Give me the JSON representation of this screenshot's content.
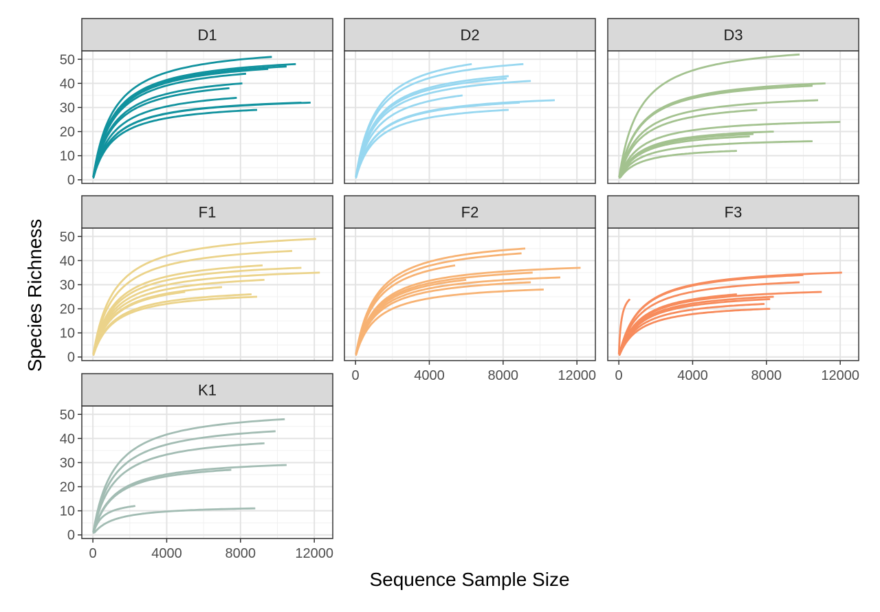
{
  "chart_data": {
    "type": "line",
    "layout": "facet_wrap",
    "xlabel": "Sequence Sample Size",
    "ylabel": "Species Richness",
    "xlim": [
      -600,
      13000
    ],
    "ylim": [
      -1.5,
      53.5
    ],
    "x_ticks": [
      0,
      4000,
      8000,
      12000
    ],
    "y_ticks": [
      0,
      10,
      20,
      30,
      40,
      50
    ],
    "grid": true,
    "panels": [
      {
        "name": "D1",
        "color": "#11929E",
        "curves": [
          {
            "max_x": 9700,
            "max_y": 51
          },
          {
            "max_x": 11000,
            "max_y": 48
          },
          {
            "max_x": 10500,
            "max_y": 47
          },
          {
            "max_x": 9500,
            "max_y": 46
          },
          {
            "max_x": 8300,
            "max_y": 44
          },
          {
            "max_x": 8100,
            "max_y": 40
          },
          {
            "max_x": 7400,
            "max_y": 38
          },
          {
            "max_x": 7800,
            "max_y": 34
          },
          {
            "max_x": 11800,
            "max_y": 32
          },
          {
            "max_x": 11300,
            "max_y": 32
          },
          {
            "max_x": 8900,
            "max_y": 29
          }
        ]
      },
      {
        "name": "D2",
        "color": "#97D7F0",
        "curves": [
          {
            "max_x": 6300,
            "max_y": 48
          },
          {
            "max_x": 9100,
            "max_y": 48
          },
          {
            "max_x": 8300,
            "max_y": 43
          },
          {
            "max_x": 8200,
            "max_y": 42
          },
          {
            "max_x": 9500,
            "max_y": 41
          },
          {
            "max_x": 5800,
            "max_y": 35
          },
          {
            "max_x": 10800,
            "max_y": 33
          },
          {
            "max_x": 8900,
            "max_y": 32
          },
          {
            "max_x": 8300,
            "max_y": 29
          }
        ]
      },
      {
        "name": "D3",
        "color": "#A3C28F",
        "curves": [
          {
            "max_x": 9800,
            "max_y": 52
          },
          {
            "max_x": 11200,
            "max_y": 40
          },
          {
            "max_x": 10500,
            "max_y": 39
          },
          {
            "max_x": 10800,
            "max_y": 33
          },
          {
            "max_x": 7500,
            "max_y": 29
          },
          {
            "max_x": 12000,
            "max_y": 24
          },
          {
            "max_x": 8400,
            "max_y": 20
          },
          {
            "max_x": 7300,
            "max_y": 19
          },
          {
            "max_x": 7100,
            "max_y": 18
          },
          {
            "max_x": 10500,
            "max_y": 16
          },
          {
            "max_x": 6400,
            "max_y": 12
          }
        ]
      },
      {
        "name": "F1",
        "color": "#EBD38A",
        "curves": [
          {
            "max_x": 12100,
            "max_y": 49
          },
          {
            "max_x": 10800,
            "max_y": 44
          },
          {
            "max_x": 9200,
            "max_y": 38
          },
          {
            "max_x": 11300,
            "max_y": 37
          },
          {
            "max_x": 12300,
            "max_y": 35
          },
          {
            "max_x": 9300,
            "max_y": 32
          },
          {
            "max_x": 7000,
            "max_y": 29
          },
          {
            "max_x": 5000,
            "max_y": 27
          },
          {
            "max_x": 8600,
            "max_y": 26
          },
          {
            "max_x": 8900,
            "max_y": 25
          }
        ]
      },
      {
        "name": "F2",
        "color": "#F7B273",
        "curves": [
          {
            "max_x": 9200,
            "max_y": 45
          },
          {
            "max_x": 9000,
            "max_y": 43
          },
          {
            "max_x": 5400,
            "max_y": 38
          },
          {
            "max_x": 12200,
            "max_y": 37
          },
          {
            "max_x": 9600,
            "max_y": 35
          },
          {
            "max_x": 11100,
            "max_y": 33
          },
          {
            "max_x": 6000,
            "max_y": 32
          },
          {
            "max_x": 9500,
            "max_y": 31
          },
          {
            "max_x": 10200,
            "max_y": 28
          }
        ]
      },
      {
        "name": "F3",
        "color": "#F78B5C",
        "curves": [
          {
            "max_x": 12100,
            "max_y": 35
          },
          {
            "max_x": 10000,
            "max_y": 34
          },
          {
            "max_x": 9800,
            "max_y": 31
          },
          {
            "max_x": 11000,
            "max_y": 27
          },
          {
            "max_x": 6400,
            "max_y": 26
          },
          {
            "max_x": 8400,
            "max_y": 25
          },
          {
            "max_x": 8200,
            "max_y": 24
          },
          {
            "max_x": 7900,
            "max_y": 22
          },
          {
            "max_x": 8200,
            "max_y": 20
          },
          {
            "max_x": 600,
            "max_y": 24
          }
        ]
      },
      {
        "name": "K1",
        "color": "#A2BCB3",
        "curves": [
          {
            "max_x": 10400,
            "max_y": 48
          },
          {
            "max_x": 9900,
            "max_y": 43
          },
          {
            "max_x": 9300,
            "max_y": 38
          },
          {
            "max_x": 10500,
            "max_y": 29
          },
          {
            "max_x": 7500,
            "max_y": 27
          },
          {
            "max_x": 2300,
            "max_y": 12
          },
          {
            "max_x": 8800,
            "max_y": 11
          }
        ]
      }
    ]
  }
}
